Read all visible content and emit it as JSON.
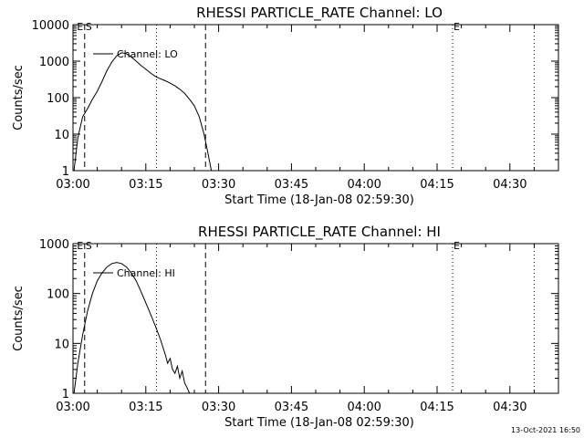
{
  "footer": {
    "timestamp": "13-Oct-2021 16:50"
  },
  "chart_data": [
    {
      "type": "line",
      "title": "RHESSI PARTICLE_RATE Channel: LO",
      "xlabel": "Start Time (18-Jan-08 02:59:30)",
      "ylabel": "Counts/sec",
      "y_scale": "log",
      "ylim": [
        1,
        10000
      ],
      "xlim_minutes": [
        0,
        100
      ],
      "x_tick_minutes": [
        0,
        15,
        30,
        45,
        60,
        75,
        90
      ],
      "x_tick_labels": [
        "03:00",
        "03:15",
        "03:30",
        "03:45",
        "04:00",
        "04:15",
        "04:30"
      ],
      "y_tick_values": [
        1,
        10,
        100,
        1000,
        10000
      ],
      "y_tick_labels": [
        "1",
        "10",
        "100",
        "1000",
        "10000"
      ],
      "grid": false,
      "legend": {
        "position": "top-left",
        "entries": [
          "Channel: LO"
        ]
      },
      "markers": [
        {
          "label": "E",
          "minute": 0.6
        },
        {
          "label": "S",
          "minute": 2.4
        },
        {
          "label": "E",
          "minute": 78.2
        }
      ],
      "vlines": [
        {
          "minute": 2.4,
          "style": "dashed"
        },
        {
          "minute": 17.2,
          "style": "dotted"
        },
        {
          "minute": 27.3,
          "style": "dashed"
        },
        {
          "minute": 78.2,
          "style": "dotted"
        },
        {
          "minute": 95.0,
          "style": "dotted"
        }
      ],
      "series": [
        {
          "name": "Channel: LO",
          "x": [
            0.2,
            1,
            2,
            3,
            4,
            5,
            6,
            7,
            8,
            9,
            10,
            11,
            12,
            13,
            14,
            15,
            16,
            17,
            18,
            19,
            20,
            21,
            22,
            23,
            24,
            25,
            26,
            27,
            27.8,
            28.5
          ],
          "y": [
            1,
            8,
            30,
            50,
            90,
            150,
            280,
            550,
            950,
            1400,
            1700,
            1600,
            1300,
            1000,
            760,
            600,
            470,
            380,
            330,
            290,
            250,
            210,
            170,
            130,
            90,
            60,
            30,
            10,
            3,
            1
          ]
        }
      ]
    },
    {
      "type": "line",
      "title": "RHESSI PARTICLE_RATE Channel: HI",
      "xlabel": "Start Time (18-Jan-08 02:59:30)",
      "ylabel": "Counts/sec",
      "y_scale": "log",
      "ylim": [
        1,
        1000
      ],
      "xlim_minutes": [
        0,
        100
      ],
      "x_tick_minutes": [
        0,
        15,
        30,
        45,
        60,
        75,
        90
      ],
      "x_tick_labels": [
        "03:00",
        "03:15",
        "03:30",
        "03:45",
        "04:00",
        "04:15",
        "04:30"
      ],
      "y_tick_values": [
        1,
        10,
        100,
        1000
      ],
      "y_tick_labels": [
        "1",
        "10",
        "100",
        "1000"
      ],
      "grid": false,
      "legend": {
        "position": "top-left",
        "entries": [
          "Channel: HI"
        ]
      },
      "markers": [
        {
          "label": "E",
          "minute": 0.6
        },
        {
          "label": "S",
          "minute": 2.4
        },
        {
          "label": "E",
          "minute": 78.2
        }
      ],
      "vlines": [
        {
          "minute": 2.4,
          "style": "dashed"
        },
        {
          "minute": 17.2,
          "style": "dotted"
        },
        {
          "minute": 27.3,
          "style": "dashed"
        },
        {
          "minute": 78.2,
          "style": "dotted"
        },
        {
          "minute": 95.0,
          "style": "dotted"
        }
      ],
      "series": [
        {
          "name": "Channel: HI",
          "x": [
            0.2,
            1,
            2,
            3,
            4,
            5,
            6,
            7,
            8,
            9,
            10,
            11,
            12,
            13,
            14,
            15,
            16,
            17,
            18,
            19,
            19.5,
            20,
            20.5,
            21,
            21.5,
            22,
            22.5,
            23,
            23.5,
            24
          ],
          "y": [
            1,
            4,
            15,
            45,
            100,
            180,
            260,
            340,
            400,
            420,
            400,
            340,
            260,
            180,
            110,
            65,
            38,
            22,
            12,
            6,
            4,
            5,
            3,
            2.5,
            3.5,
            2,
            2.8,
            1.6,
            1.3,
            1
          ]
        }
      ]
    }
  ]
}
